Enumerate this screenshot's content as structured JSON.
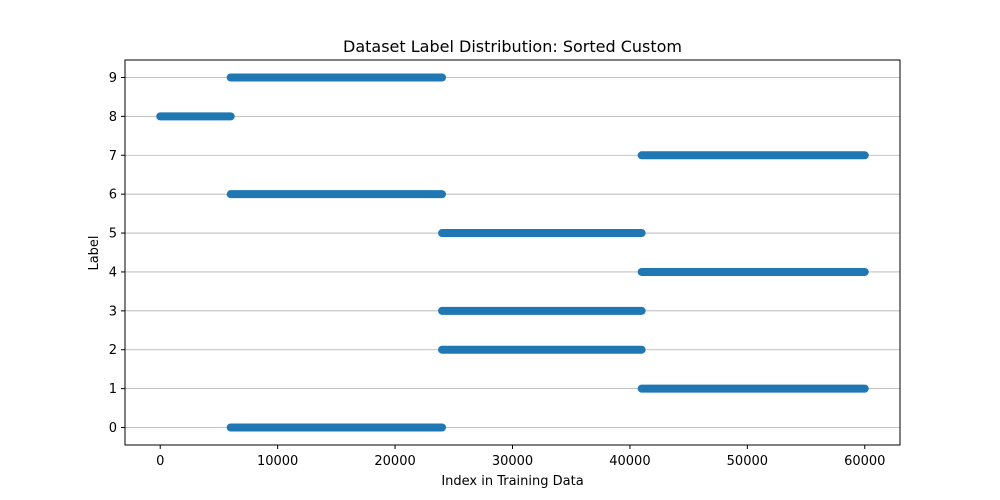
{
  "chart_data": {
    "type": "scatter",
    "title": "Dataset Label Distribution: Sorted Custom",
    "xlabel": "Index in Training Data",
    "ylabel": "Label",
    "xlim": [
      -3000,
      63000
    ],
    "ylim": [
      -0.45,
      9.45
    ],
    "x_ticks": [
      0,
      10000,
      20000,
      30000,
      40000,
      50000,
      60000
    ],
    "x_tick_labels": [
      "0",
      "10000",
      "20000",
      "30000",
      "40000",
      "50000",
      "60000"
    ],
    "y_ticks": [
      0,
      1,
      2,
      3,
      4,
      5,
      6,
      7,
      8,
      9
    ],
    "y_tick_labels": [
      "0",
      "1",
      "2",
      "3",
      "4",
      "5",
      "6",
      "7",
      "8",
      "9"
    ],
    "grid": "horizontal",
    "legend": "none",
    "color": "#1f77b4",
    "segments": [
      {
        "label": 8,
        "x_start": 0,
        "x_end": 6000
      },
      {
        "label": 0,
        "x_start": 6000,
        "x_end": 24000
      },
      {
        "label": 6,
        "x_start": 6000,
        "x_end": 24000
      },
      {
        "label": 9,
        "x_start": 6000,
        "x_end": 24000
      },
      {
        "label": 2,
        "x_start": 24000,
        "x_end": 41000
      },
      {
        "label": 3,
        "x_start": 24000,
        "x_end": 41000
      },
      {
        "label": 5,
        "x_start": 24000,
        "x_end": 41000
      },
      {
        "label": 1,
        "x_start": 41000,
        "x_end": 60000
      },
      {
        "label": 4,
        "x_start": 41000,
        "x_end": 60000
      },
      {
        "label": 7,
        "x_start": 41000,
        "x_end": 60000
      }
    ]
  }
}
